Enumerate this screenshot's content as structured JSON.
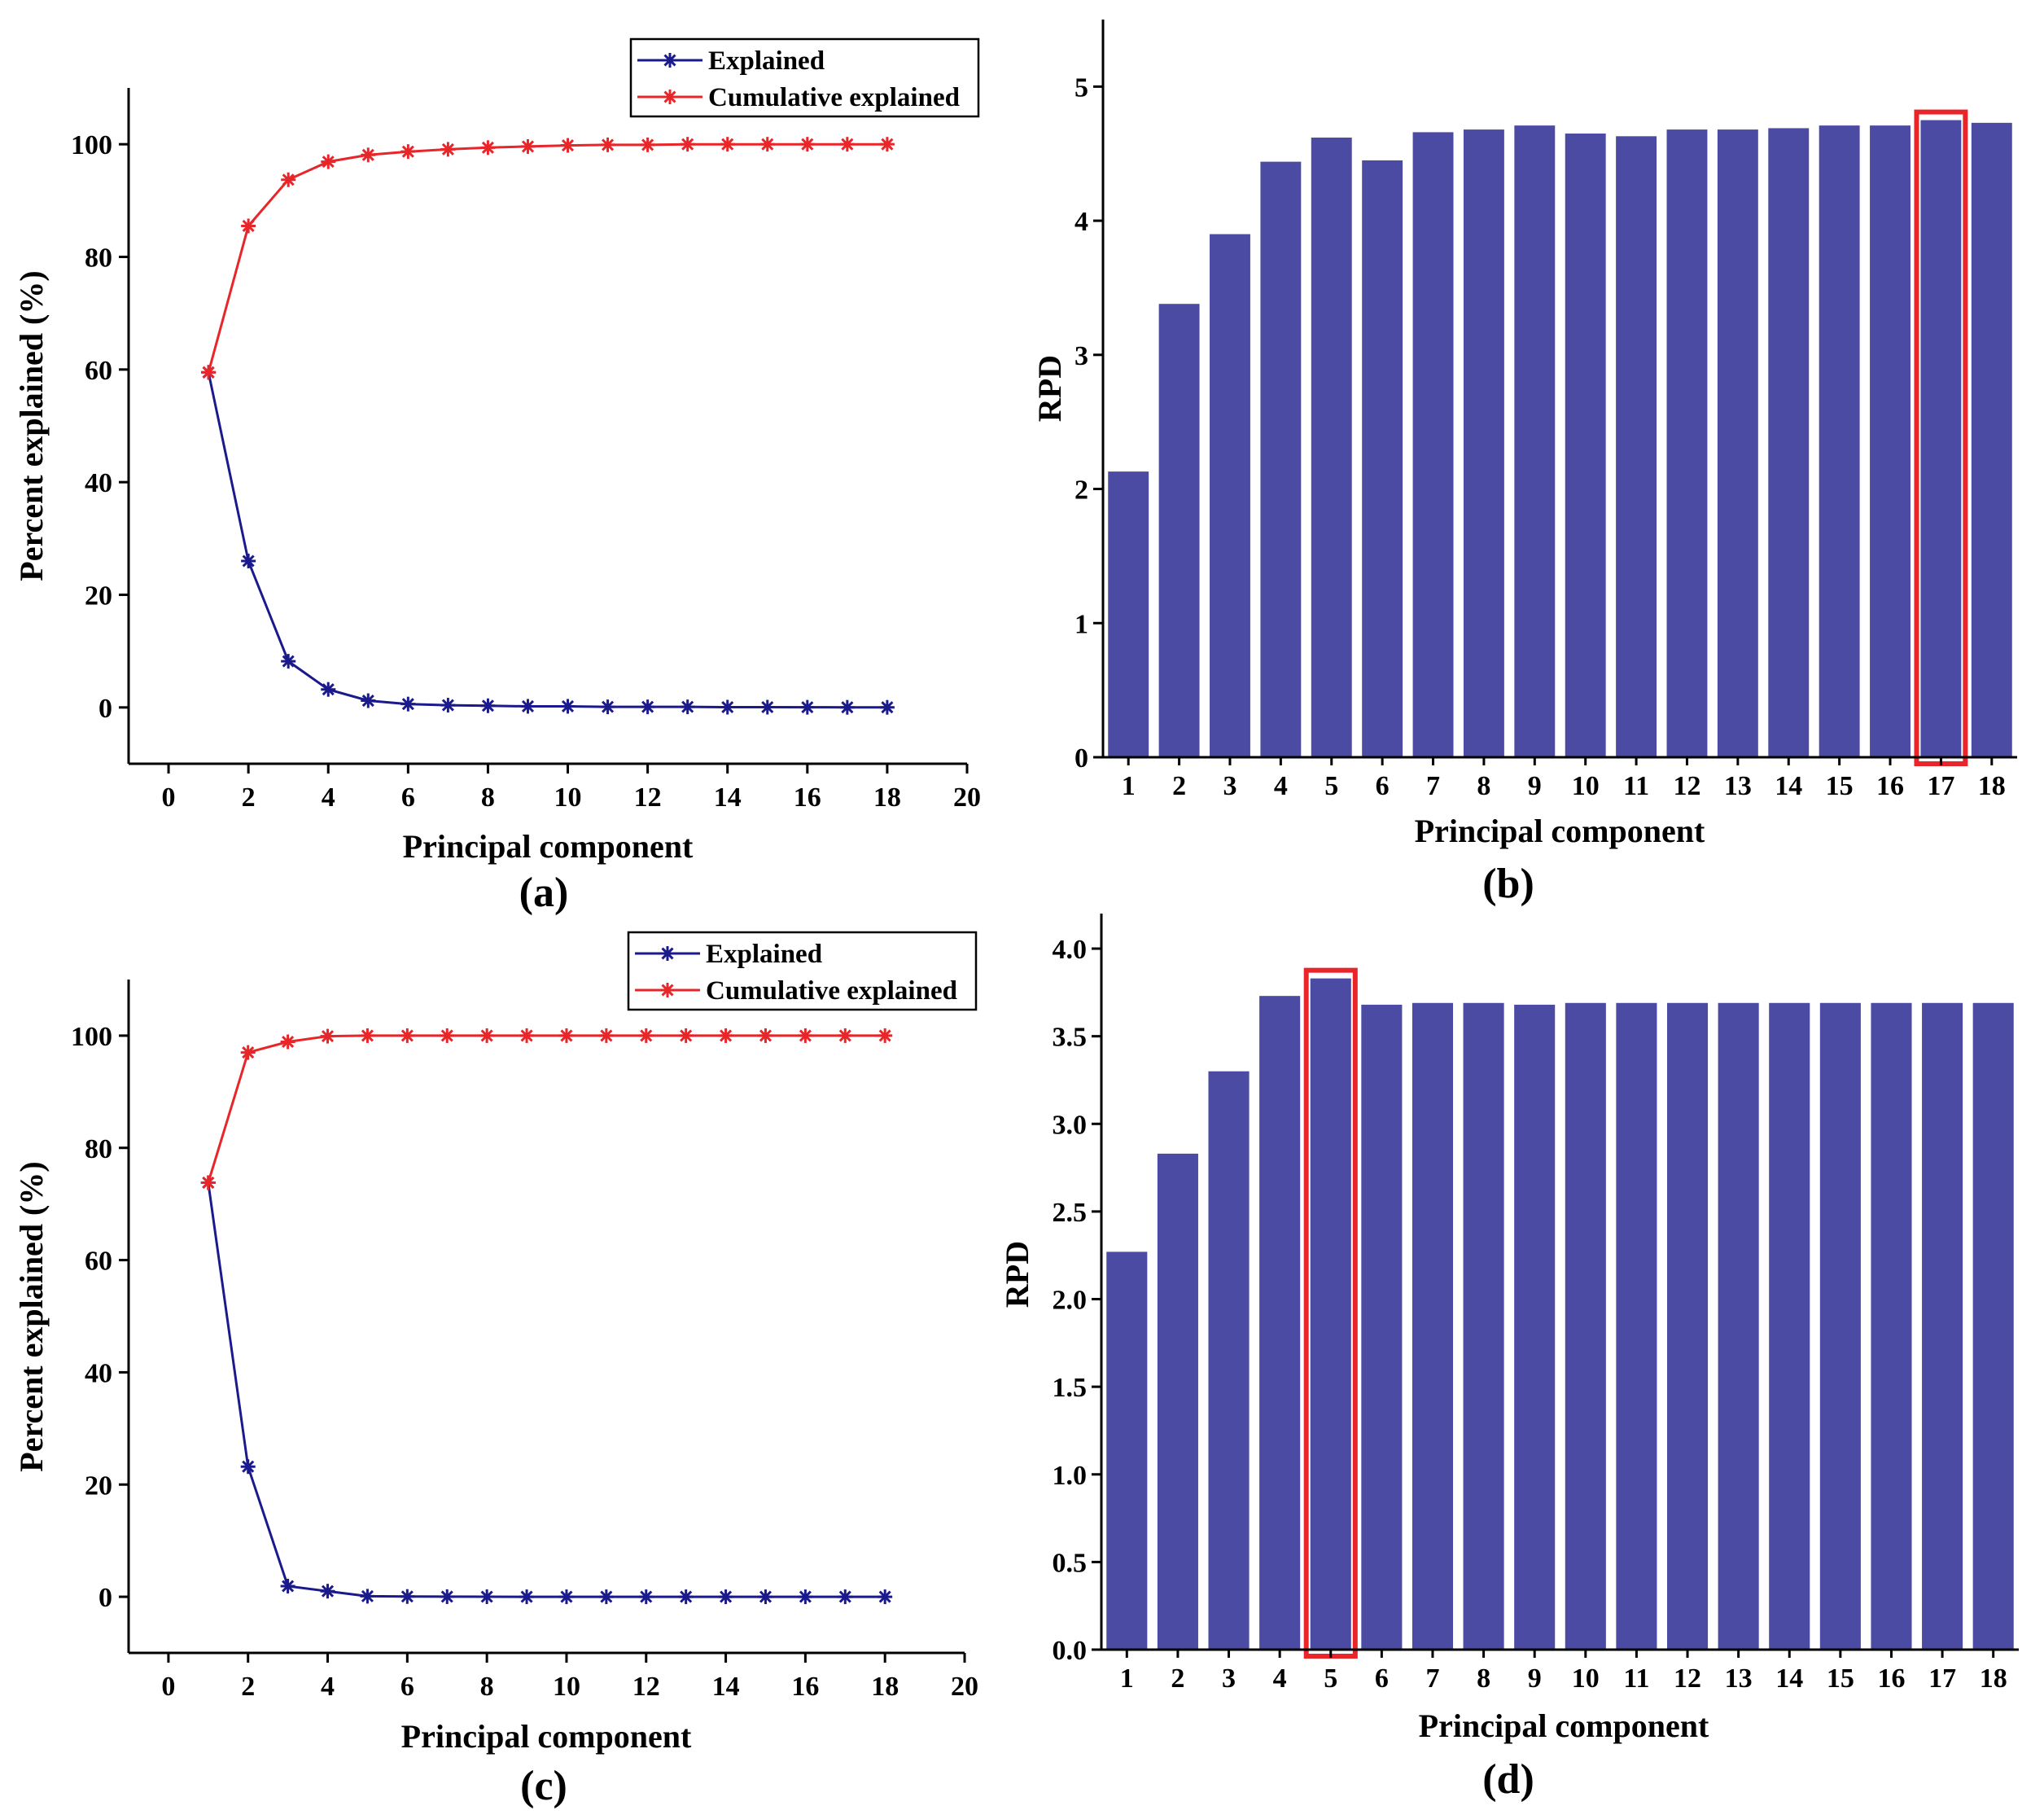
{
  "chart_data": [
    {
      "id": "a",
      "type": "line",
      "panel_label": "(a)",
      "xlabel": "Principal component",
      "ylabel": "Percent explained (%)",
      "xlim": [
        -1,
        20
      ],
      "ylim": [
        -10,
        110
      ],
      "xticks": [
        0,
        2,
        4,
        6,
        8,
        10,
        12,
        14,
        16,
        18,
        20
      ],
      "yticks": [
        0,
        20,
        40,
        60,
        80,
        100
      ],
      "legend_position": "top-right",
      "x": [
        1,
        2,
        3,
        4,
        5,
        6,
        7,
        8,
        9,
        10,
        11,
        12,
        13,
        14,
        15,
        16,
        17,
        18
      ],
      "series": [
        {
          "name": "Explained",
          "color": "#1a1a8c",
          "values": [
            59.5,
            26,
            8.2,
            3.2,
            1.2,
            0.6,
            0.4,
            0.3,
            0.2,
            0.2,
            0.1,
            0.1,
            0.1,
            0.05,
            0.05,
            0.03,
            0.02,
            0.02
          ]
        },
        {
          "name": "Cumulative explained",
          "color": "#e8262a",
          "values": [
            59.5,
            85.5,
            93.7,
            96.9,
            98.1,
            98.7,
            99.1,
            99.4,
            99.6,
            99.8,
            99.9,
            99.9,
            100,
            100,
            100,
            100,
            100,
            100
          ]
        }
      ]
    },
    {
      "id": "b",
      "type": "bar",
      "panel_label": "(b)",
      "xlabel": "Principal component",
      "ylabel": "RPD",
      "ylim": [
        0,
        5.5
      ],
      "yticks": [
        "0",
        "1",
        "2",
        "3",
        "4",
        "5"
      ],
      "bar_color": "#4b4ba3",
      "highlight_color": "#e8262a",
      "highlight_index": 16,
      "categories": [
        "1",
        "2",
        "3",
        "4",
        "5",
        "6",
        "7",
        "8",
        "9",
        "10",
        "11",
        "12",
        "13",
        "14",
        "15",
        "16",
        "17",
        "18"
      ],
      "values": [
        2.13,
        3.38,
        3.9,
        4.44,
        4.62,
        4.45,
        4.66,
        4.68,
        4.71,
        4.65,
        4.63,
        4.68,
        4.68,
        4.69,
        4.71,
        4.71,
        4.75,
        4.73
      ]
    },
    {
      "id": "c",
      "type": "line",
      "panel_label": "(c)",
      "xlabel": "Principal component",
      "ylabel": "Percent explained (%)",
      "xlim": [
        -1,
        20
      ],
      "ylim": [
        -10,
        110
      ],
      "xticks": [
        0,
        2,
        4,
        6,
        8,
        10,
        12,
        14,
        16,
        18,
        20
      ],
      "yticks": [
        0,
        20,
        40,
        60,
        80,
        100
      ],
      "legend_position": "top-right",
      "x": [
        1,
        2,
        3,
        4,
        5,
        6,
        7,
        8,
        9,
        10,
        11,
        12,
        13,
        14,
        15,
        16,
        17,
        18
      ],
      "series": [
        {
          "name": "Explained",
          "color": "#1a1a8c",
          "values": [
            73.8,
            23.2,
            1.9,
            1,
            0.1,
            0.05,
            0.02,
            0.01,
            0,
            0,
            0,
            0,
            0,
            0,
            0,
            0,
            0,
            0
          ]
        },
        {
          "name": "Cumulative explained",
          "color": "#e8262a",
          "values": [
            73.8,
            97,
            98.9,
            99.9,
            100,
            100,
            100,
            100,
            100,
            100,
            100,
            100,
            100,
            100,
            100,
            100,
            100,
            100
          ]
        }
      ]
    },
    {
      "id": "d",
      "type": "bar",
      "panel_label": "(d)",
      "xlabel": "Principal component",
      "ylabel": "RPD",
      "ylim": [
        0,
        4.2
      ],
      "yticks": [
        "0.0",
        "0.5",
        "1.0",
        "1.5",
        "2.0",
        "2.5",
        "3.0",
        "3.5",
        "4.0"
      ],
      "bar_color": "#4b4ba3",
      "highlight_color": "#e8262a",
      "highlight_index": 4,
      "categories": [
        "1",
        "2",
        "3",
        "4",
        "5",
        "6",
        "7",
        "8",
        "9",
        "10",
        "11",
        "12",
        "13",
        "14",
        "15",
        "16",
        "17",
        "18"
      ],
      "values": [
        2.27,
        2.83,
        3.3,
        3.73,
        3.83,
        3.68,
        3.69,
        3.69,
        3.68,
        3.69,
        3.69,
        3.69,
        3.69,
        3.69,
        3.69,
        3.69,
        3.69,
        3.69
      ]
    }
  ]
}
